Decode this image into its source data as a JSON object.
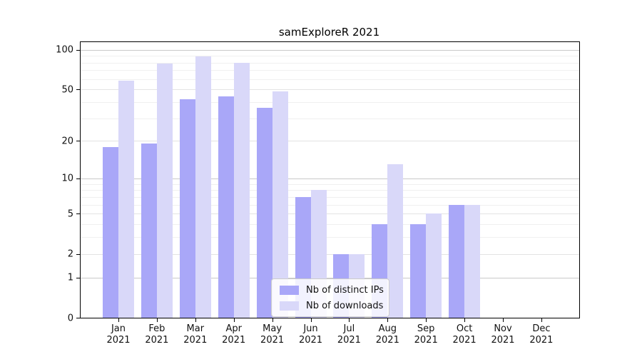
{
  "chart_data": {
    "type": "bar",
    "title": "samExploreR 2021",
    "categories": [
      "Jan",
      "Feb",
      "Mar",
      "Apr",
      "May",
      "Jun",
      "Jul",
      "Aug",
      "Sep",
      "Oct",
      "Nov",
      "Dec"
    ],
    "x_tick_year": "2021",
    "series": [
      {
        "name": "Nb of distinct IPs",
        "color": "#a9a7f8",
        "values": [
          18,
          19,
          42,
          44,
          36,
          7,
          2,
          4,
          4,
          6,
          0,
          0
        ]
      },
      {
        "name": "Nb of downloads",
        "color": "#d9d8f9",
        "values": [
          58,
          79,
          89,
          80,
          48,
          8,
          2,
          13,
          5,
          6,
          0,
          0
        ]
      }
    ],
    "y_scale": "log1p",
    "ylim": [
      0,
      114
    ],
    "y_ticks": [
      0,
      1,
      2,
      5,
      10,
      20,
      50,
      100
    ],
    "grid_major": [
      1,
      10,
      100
    ],
    "grid_mid": [
      2,
      5,
      20,
      50
    ],
    "grid_minor": [
      3,
      4,
      6,
      7,
      8,
      9,
      30,
      40,
      60,
      70,
      80,
      90
    ],
    "grid": true,
    "legend_position": "lower center-left inside plot"
  },
  "colors": {
    "grid_major": "#c9c9c9",
    "grid_mid": "#e3e3e3",
    "grid_minor": "#f0f0f0",
    "axis": "#000000",
    "text": "#111111",
    "background": "#ffffff"
  }
}
